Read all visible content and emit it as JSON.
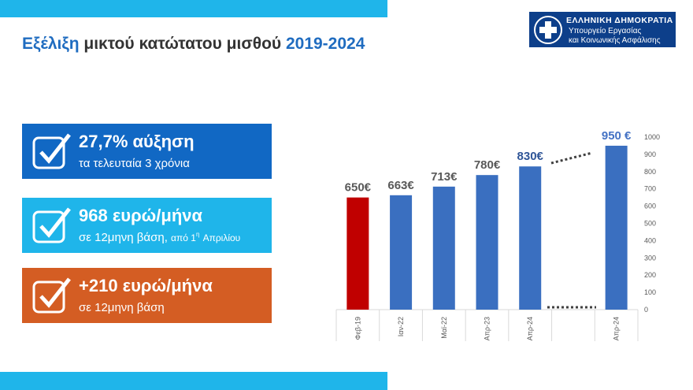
{
  "slide": {
    "title": [
      "Εξέλιξη",
      "μικτού κατώτατου μισθού",
      "2019-2024"
    ],
    "logo": [
      "ΕΛΛΗΝΙΚΗ ΔΗΜΟΚΡΑΤΙΑ",
      "Υπουργείο Εργασίας",
      "και Κοινωνικής Ασφάλισης"
    ],
    "boxes": [
      {
        "headline": "27,7% αύξηση",
        "detail": [
          "τα τελευταία 3 χρόνια"
        ]
      },
      {
        "headline": "968 ευρώ/μήνα",
        "detail": [
          "σε 12μηνη βάση,",
          "από 1",
          "η",
          "Απριλίου"
        ]
      },
      {
        "headline": "+210 ευρώ/μήνα",
        "detail": [
          "σε 12μηνη βάση"
        ]
      }
    ]
  },
  "chart_data": {
    "type": "bar",
    "categories": [
      "Φεβ-19",
      "Ιαν-22",
      "Μαϊ-22",
      "Απρ-23",
      "Απρ-24",
      null,
      "Απρ-24"
    ],
    "values": [
      650,
      663,
      713,
      780,
      830,
      null,
      950
    ],
    "value_labels": [
      "650€",
      "663€",
      "713€",
      "780€",
      "830€",
      null,
      "950 €"
    ],
    "colors": [
      "#c00000",
      "#3a6fc0",
      "#3a6fc0",
      "#3a6fc0",
      "#3a6fc0",
      null,
      "#3a6fc0"
    ],
    "label_colors": [
      "#595959",
      "#595959",
      "#595959",
      "#595959",
      "#2f5597",
      null,
      "#4472c4"
    ],
    "ylim": [
      0,
      1000
    ],
    "yticks": [
      0,
      100,
      200,
      300,
      400,
      500,
      600,
      700,
      800,
      900,
      1000
    ]
  }
}
